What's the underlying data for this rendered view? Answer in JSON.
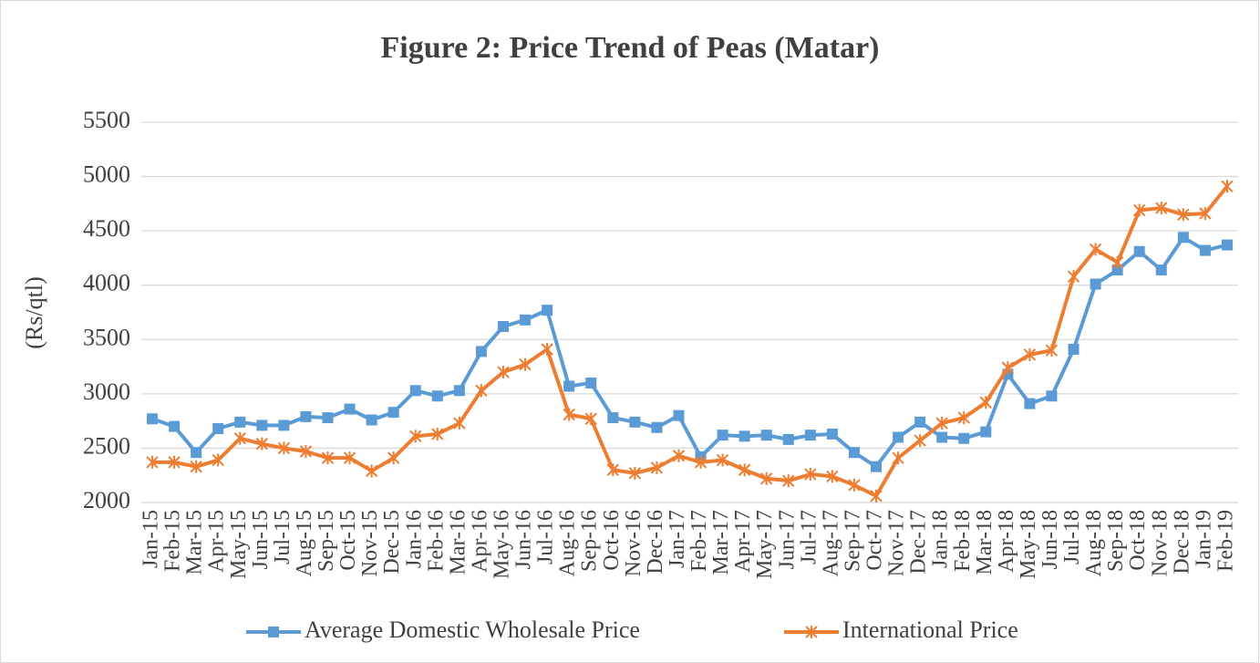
{
  "chart_data": {
    "type": "line",
    "title": "Figure 2: Price Trend of Peas (Matar)",
    "y_label": "(Rs/qtl)",
    "categories": [
      "Jan-15",
      "Feb-15",
      "Mar-15",
      "Apr-15",
      "May-15",
      "Jun-15",
      "Jul-15",
      "Aug-15",
      "Sep-15",
      "Oct-15",
      "Nov-15",
      "Dec-15",
      "Jan-16",
      "Feb-16",
      "Mar-16",
      "Apr-16",
      "May-16",
      "Jun-16",
      "Jul-16",
      "Aug-16",
      "Sep-16",
      "Oct-16",
      "Nov-16",
      "Dec-16",
      "Jan-17",
      "Feb-17",
      "Mar-17",
      "Apr-17",
      "May-17",
      "Jun-17",
      "Jul-17",
      "Aug-17",
      "Sep-17",
      "Oct-17",
      "Nov-17",
      "Dec-17",
      "Jan-18",
      "Feb-18",
      "Mar-18",
      "Apr-18",
      "May-18",
      "Jun-18",
      "Jul-18",
      "Aug-18",
      "Sep-18",
      "Oct-18",
      "Nov-18",
      "Dec-18",
      "Jan-19",
      "Feb-19"
    ],
    "series": [
      {
        "name": "Average Domestic Wholesale Price",
        "color": "#5b9bd5",
        "marker": "square",
        "values": [
          2770,
          2700,
          2460,
          2680,
          2740,
          2710,
          2710,
          2790,
          2780,
          2860,
          2760,
          2830,
          3030,
          2980,
          3030,
          3390,
          3620,
          3680,
          3770,
          3070,
          3100,
          2780,
          2740,
          2690,
          2800,
          2420,
          2620,
          2610,
          2620,
          2580,
          2620,
          2630,
          2460,
          2330,
          2600,
          2740,
          2600,
          2590,
          2650,
          3180,
          2910,
          2980,
          3410,
          4010,
          4140,
          4310,
          4140,
          4440,
          4320,
          4370
        ]
      },
      {
        "name": "International Price",
        "color": "#ed7d31",
        "marker": "star",
        "values": [
          2370,
          2370,
          2330,
          2390,
          2590,
          2540,
          2500,
          2470,
          2410,
          2410,
          2290,
          2410,
          2610,
          2630,
          2730,
          3030,
          3200,
          3270,
          3410,
          2810,
          2770,
          2300,
          2270,
          2320,
          2430,
          2370,
          2390,
          2300,
          2220,
          2200,
          2260,
          2240,
          2160,
          2060,
          2410,
          2570,
          2730,
          2780,
          2920,
          3240,
          3360,
          3400,
          4080,
          4330,
          4210,
          4690,
          4710,
          4650,
          4660,
          4910
        ]
      }
    ],
    "ylim": [
      2000,
      5500
    ],
    "yticks": [
      2000,
      2500,
      3000,
      3500,
      4000,
      4500,
      5000,
      5500
    ],
    "grid": true,
    "legend": "bottom"
  }
}
